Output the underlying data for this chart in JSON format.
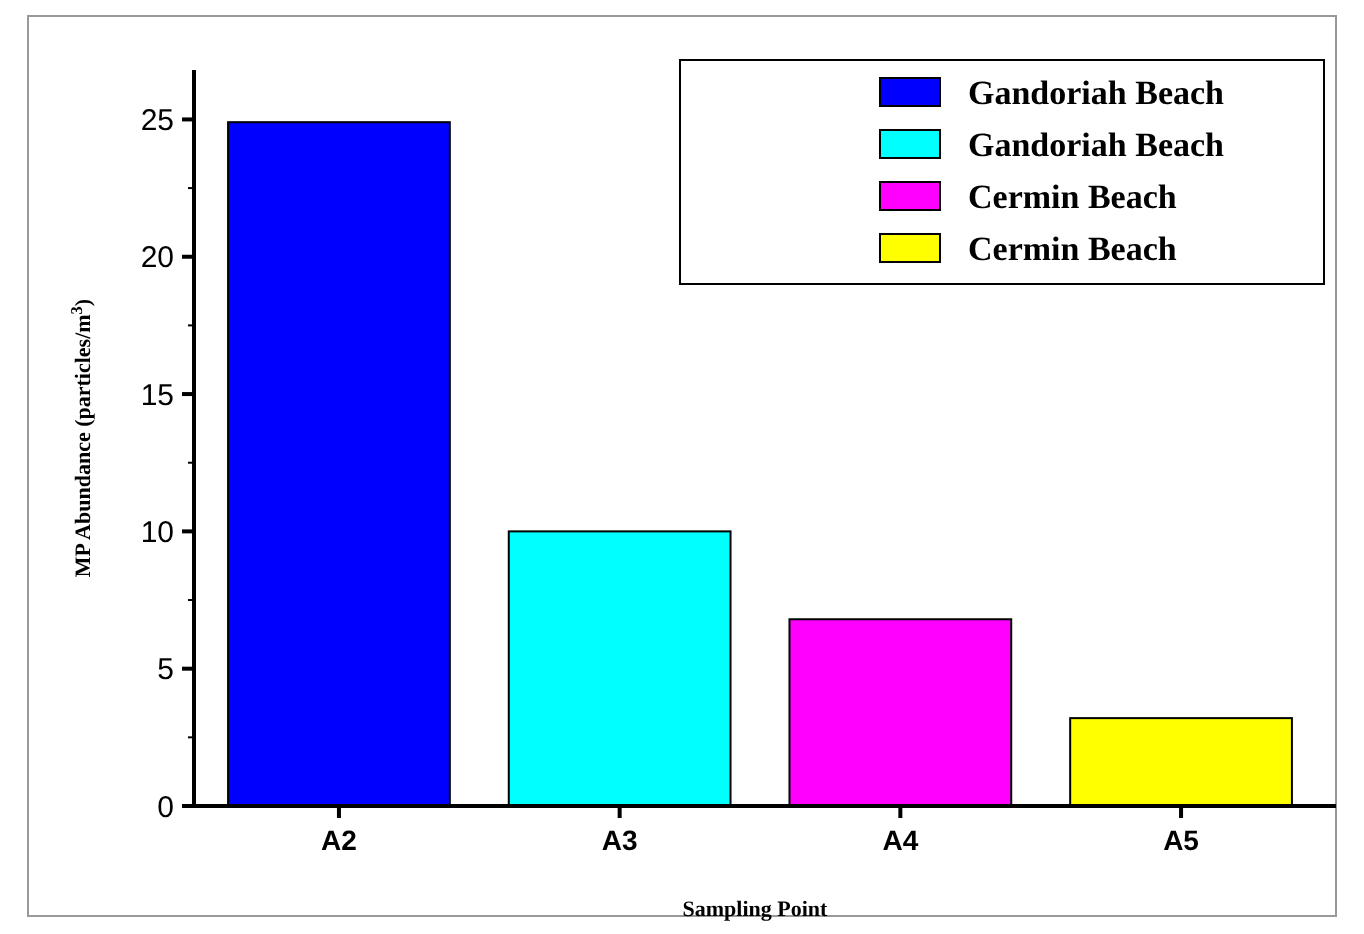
{
  "chart_data": {
    "type": "bar",
    "xlabel": "Sampling Point",
    "ylabel": "MP Abundance (particles/m$^{3}$)",
    "categories": [
      "A2",
      "A3",
      "A4",
      "A5"
    ],
    "series": [
      {
        "name": "Gandoriah Beach",
        "color": "#0000ff",
        "values": [
          24.9,
          null,
          null,
          null
        ]
      },
      {
        "name": "Gandoriah Beach",
        "color": "#00ffff",
        "values": [
          null,
          10.0,
          null,
          null
        ]
      },
      {
        "name": "Cermin Beach",
        "color": "#ff00ff",
        "values": [
          null,
          null,
          6.8,
          null
        ]
      },
      {
        "name": "Cermin Beach",
        "color": "#ffff00",
        "values": [
          null,
          null,
          null,
          3.2
        ]
      }
    ],
    "ylim": [
      0,
      26.8
    ],
    "yticks": [
      0,
      5,
      10,
      15,
      20,
      25
    ],
    "legend": "top right",
    "grid": false
  }
}
